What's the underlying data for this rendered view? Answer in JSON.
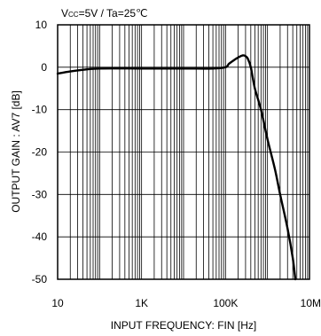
{
  "chart_data": {
    "type": "line",
    "title_prefix": "V",
    "title_sub": "CC",
    "title_suffix": "=5V / Ta=25℃",
    "xlabel": "INPUT FREQUENCY: FIN [Hz]",
    "ylabel": "OUTPUT GAIN : AV7 [dB]",
    "x_scale": "log",
    "xlim": [
      10,
      10000000
    ],
    "ylim": [
      -50,
      10
    ],
    "x_ticks": [
      10,
      1000,
      100000,
      10000000
    ],
    "x_tick_labels": [
      "10",
      "1K",
      "100K",
      "10M"
    ],
    "y_ticks": [
      10,
      0,
      -10,
      -20,
      -30,
      -40,
      -50
    ],
    "y_tick_labels": [
      "10",
      "0",
      "-10",
      "-20",
      "-30",
      "-40",
      "-50"
    ],
    "grid": true,
    "line_color": "#000000",
    "series": [
      {
        "x": [
          10,
          20,
          50,
          100,
          1000,
          10000,
          50000,
          100000,
          120000,
          150000,
          200000,
          260000,
          300000,
          340000,
          400000,
          500000,
          700000,
          1000000,
          1500000,
          2000000,
          3000000,
          4000000,
          4600000
        ],
        "y": [
          -1.5,
          -1.0,
          -0.5,
          -0.3,
          -0.3,
          -0.3,
          -0.3,
          0.0,
          0.8,
          1.5,
          2.3,
          2.8,
          2.6,
          2.0,
          0.0,
          -5.0,
          -10.0,
          -17.0,
          -24.0,
          -30.0,
          -38.0,
          -45.0,
          -50.0
        ]
      }
    ]
  }
}
